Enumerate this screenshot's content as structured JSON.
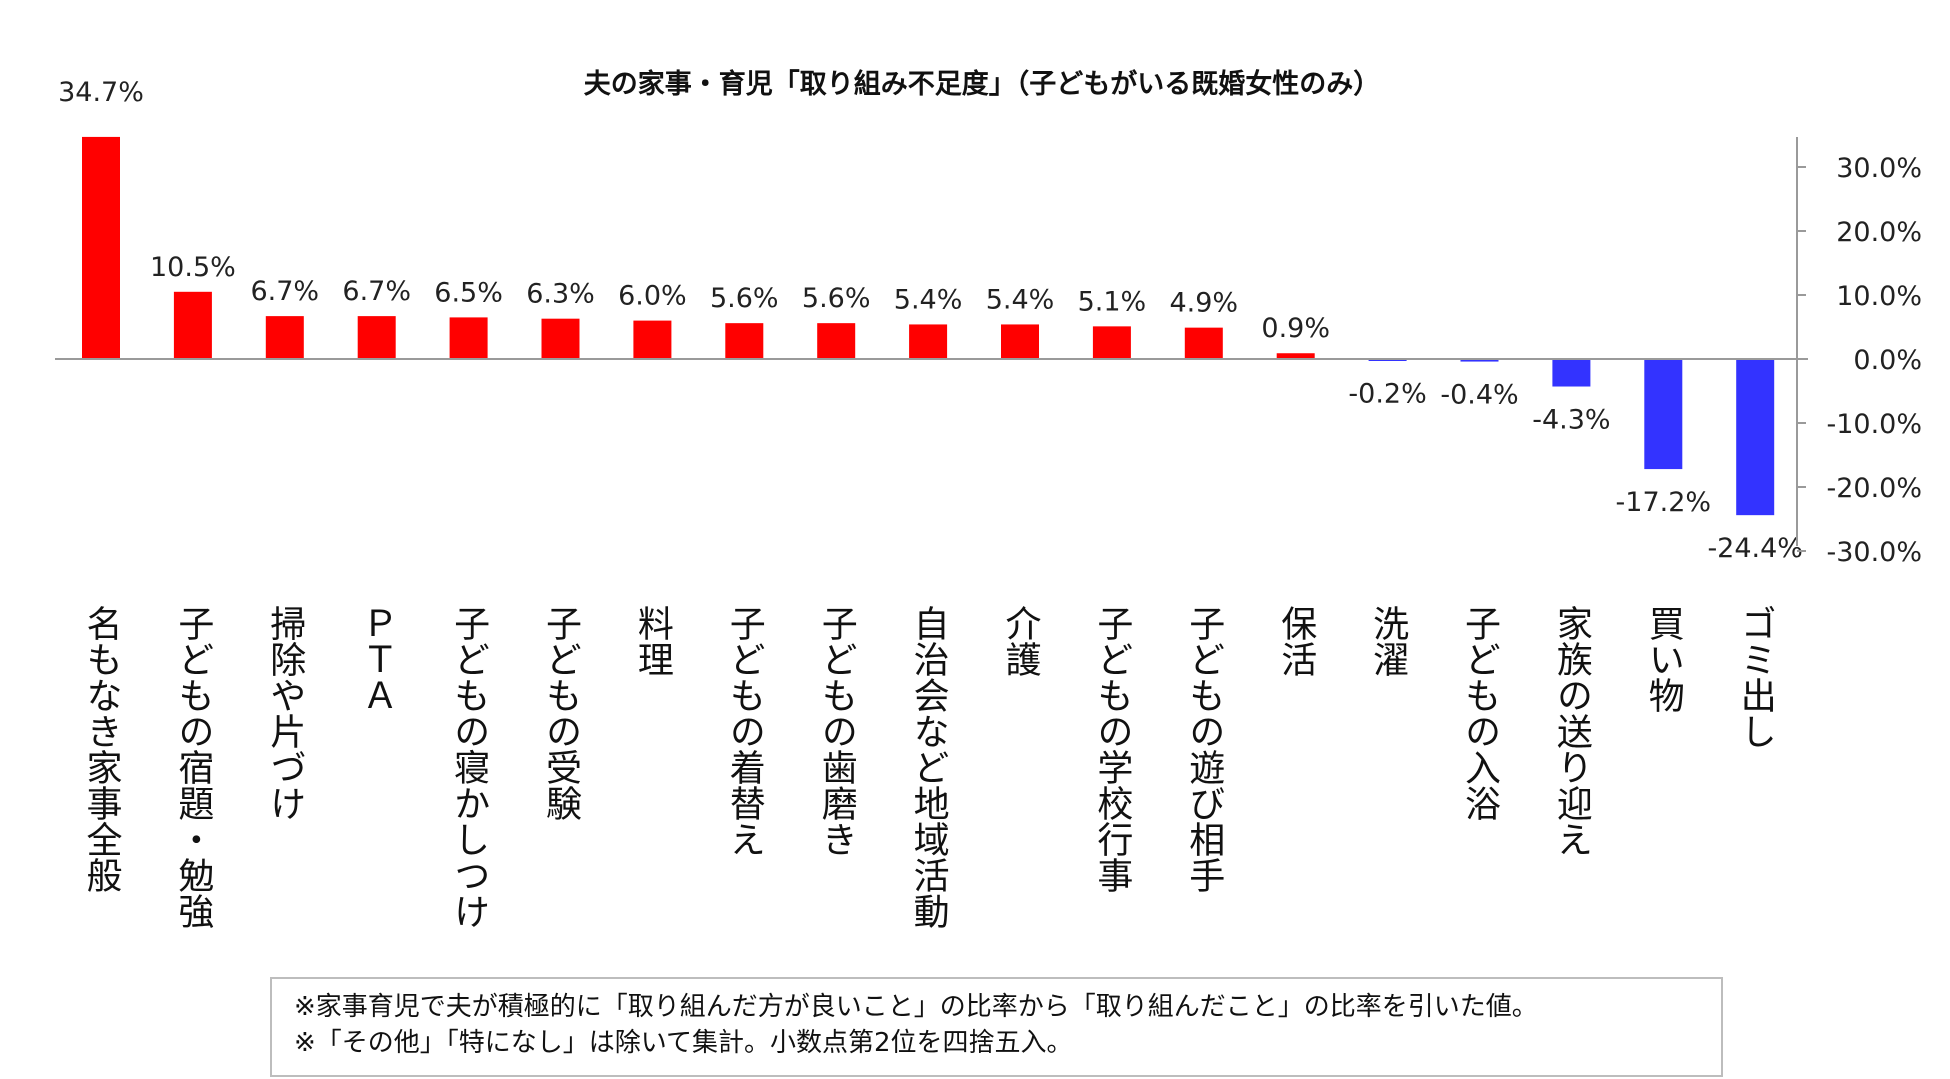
{
  "chart_data": {
    "type": "bar",
    "title": "夫の家事・育児「取り組み不足度」（子どもがいる既婚女性のみ）",
    "categories": [
      "名もなき家事全般",
      "子どもの宿題・勉強",
      "掃除や片づけ",
      "ＰＴＡ",
      "子どもの寝かしつけ",
      "子どもの受験",
      "料理",
      "子どもの着替え",
      "子どもの歯磨き",
      "自治会など地域活動",
      "介護",
      "子どもの学校行事",
      "子どもの遊び相手",
      "保活",
      "洗濯",
      "子どもの入浴",
      "家族の送り迎え",
      "買い物",
      "ゴミ出し"
    ],
    "values": [
      34.7,
      10.5,
      6.7,
      6.7,
      6.5,
      6.3,
      6.0,
      5.6,
      5.6,
      5.4,
      5.4,
      5.1,
      4.9,
      0.9,
      -0.2,
      -0.4,
      -4.3,
      -17.2,
      -24.4
    ],
    "value_labels": [
      "34.7%",
      "10.5%",
      "6.7%",
      "6.7%",
      "6.5%",
      "6.3%",
      "6.0%",
      "5.6%",
      "5.6%",
      "5.4%",
      "5.4%",
      "5.1%",
      "4.9%",
      "0.9%",
      "-0.2%",
      "-0.4%",
      "-4.3%",
      "-17.2%",
      "-24.4%"
    ],
    "y_ticks": [
      30,
      20,
      10,
      0,
      -10,
      -20,
      -30
    ],
    "y_tick_labels": [
      "30.0%",
      "20.0%",
      "10.0%",
      "0.0%",
      "-10.0%",
      "-20.0%",
      "-30.0%"
    ],
    "ylim": [
      -30,
      35
    ],
    "axis_side": "right",
    "colors": {
      "positive": "#ff0000",
      "negative": "#3333ff",
      "axis": "#9a9a9a"
    }
  },
  "notes": [
    "※家事育児で夫が積極的に「取り組んだ方が良いこと」の比率から「取り組んだこと」の比率を引いた値。",
    "※「その他」「特になし」は除いて集計。小数点第2位を四捨五入。"
  ]
}
